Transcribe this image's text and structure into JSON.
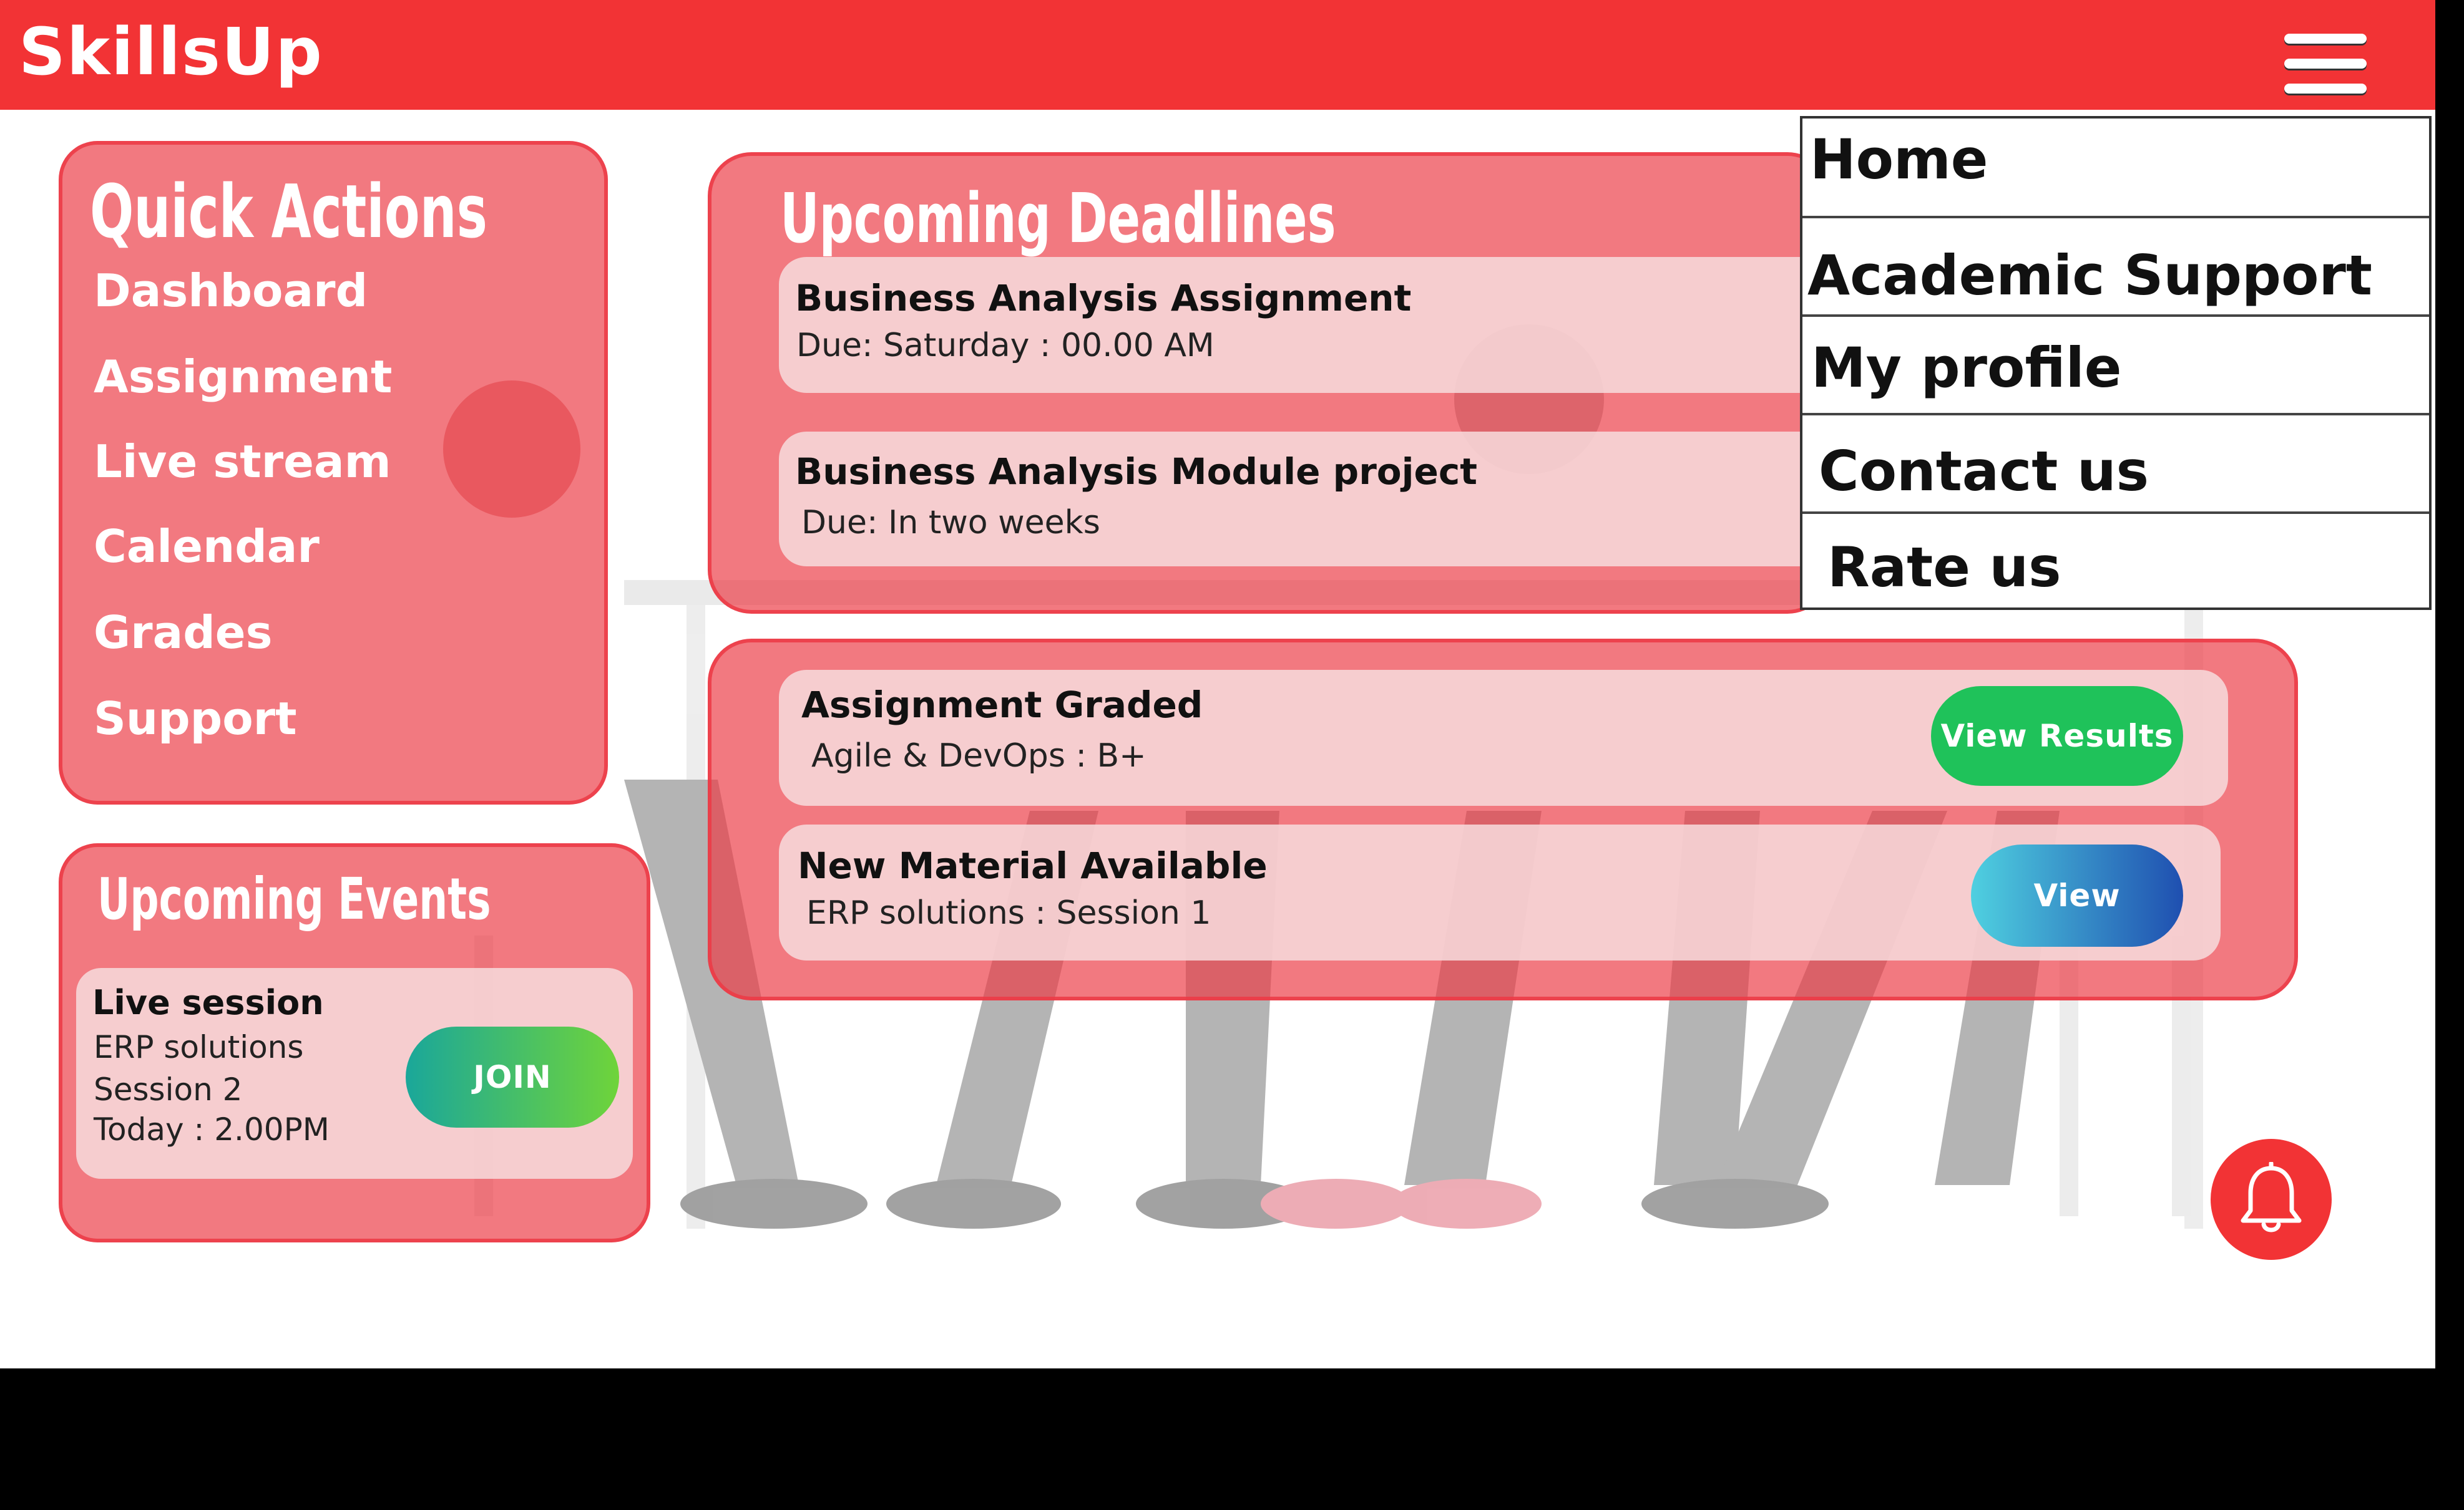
{
  "app": {
    "brand": "SkillsUp"
  },
  "header": {
    "menu_icon": "hamburger-menu-icon"
  },
  "quick_actions": {
    "title": "Quick Actions",
    "items": [
      {
        "label": "Dashboard"
      },
      {
        "label": "Assignment"
      },
      {
        "label": "Live stream"
      },
      {
        "label": "Calendar"
      },
      {
        "label": "Grades"
      },
      {
        "label": "Support"
      }
    ]
  },
  "deadlines": {
    "title": "Upcoming Deadlines",
    "items": [
      {
        "title": "Business Analysis Assignment",
        "due": "Due: Saturday : 00.00 AM"
      },
      {
        "title": "Business Analysis Module project",
        "due": "Due: In two weeks"
      }
    ]
  },
  "notifications": {
    "items": [
      {
        "title": "Assignment Graded",
        "detail": "Agile & DevOps : B+",
        "button": "View Results"
      },
      {
        "title": "New Material Available",
        "detail": "ERP solutions : Session 1",
        "button": "View"
      }
    ]
  },
  "events": {
    "title": "Upcoming Events",
    "item": {
      "title": "Live session",
      "line1": "ERP solutions",
      "line2": "Session 2",
      "line3": "Today : 2.00PM",
      "button": "JOIN"
    }
  },
  "menu": {
    "items": [
      {
        "label": "Home"
      },
      {
        "label": "Academic Support"
      },
      {
        "label": "My profile"
      },
      {
        "label": "Contact us"
      },
      {
        "label": "Rate us"
      }
    ]
  },
  "colors": {
    "brand_red": "#f23335",
    "view_results_green": "#1fc25a",
    "view_blue": "#1f5fb8",
    "join_gradient_start": "#1aa79a",
    "join_gradient_end": "#6fd43a"
  },
  "icons": {
    "notification": "bell-icon"
  }
}
